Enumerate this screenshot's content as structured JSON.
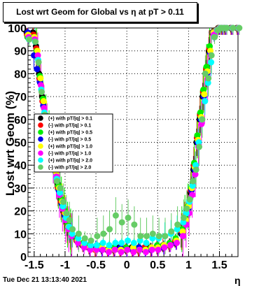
{
  "title": "Lost wrt Geom for Global vs   η at pT > 0.11",
  "timestamp": "Tue Dec 21 13:13:40 2021",
  "chart_data": {
    "type": "scatter",
    "title": "Lost wrt Geom for Global vs   η at pT > 0.11",
    "xlabel": "η",
    "ylabel": "Lost wrt Geom (%)",
    "xlim": [
      -1.6,
      1.8
    ],
    "ylim": [
      0,
      100
    ],
    "grid": true,
    "legend_position": "left-middle",
    "x_ticks": [
      -1.5,
      -1,
      -0.5,
      0,
      0.5,
      1,
      1.5
    ],
    "x_tick_labels": [
      "-1.5",
      "-1",
      "-0.5",
      "0",
      "0.5",
      "1",
      "1.5"
    ],
    "y_ticks": [
      0,
      10,
      20,
      30,
      40,
      50,
      60,
      70,
      80,
      90,
      100
    ],
    "y_tick_labels": [
      "0",
      "10",
      "20",
      "30",
      "40",
      "50",
      "60",
      "70",
      "80",
      "90",
      "100"
    ],
    "x": [
      -1.6,
      -1.5,
      -1.45,
      -1.4,
      -1.35,
      -1.3,
      -1.25,
      -1.2,
      -1.15,
      -1.1,
      -1.05,
      -1.0,
      -0.95,
      -0.9,
      -0.8,
      -0.7,
      -0.6,
      -0.5,
      -0.4,
      -0.3,
      -0.2,
      -0.1,
      0.0,
      0.1,
      0.2,
      0.3,
      0.4,
      0.5,
      0.6,
      0.7,
      0.8,
      0.9,
      0.95,
      1.0,
      1.05,
      1.1,
      1.15,
      1.2,
      1.25,
      1.3,
      1.35,
      1.4,
      1.45,
      1.5,
      1.55,
      1.6,
      1.7,
      1.8
    ],
    "series": [
      {
        "name": "(+) with pT/|q| > 0.1",
        "color": "#000000",
        "values": [
          98,
          98,
          92,
          80,
          70,
          62,
          55,
          48,
          40,
          32,
          25,
          20,
          15,
          12,
          8,
          5,
          4,
          4,
          4,
          3,
          3,
          4,
          3,
          4,
          3,
          3,
          4,
          4,
          4,
          5,
          6,
          10,
          15,
          20,
          28,
          38,
          50,
          60,
          70,
          80,
          90,
          98,
          99,
          100,
          100,
          100,
          100,
          100
        ]
      },
      {
        "name": "(-) with pT/|q| > 0.1",
        "color": "#ff0000",
        "values": [
          97,
          97,
          91,
          78,
          68,
          60,
          53,
          46,
          38,
          30,
          24,
          19,
          14,
          11,
          7,
          5,
          4,
          3,
          4,
          3,
          3,
          3,
          4,
          3,
          3,
          4,
          3,
          4,
          5,
          5,
          7,
          11,
          16,
          21,
          29,
          40,
          52,
          62,
          72,
          82,
          91,
          98,
          99,
          100,
          100,
          100,
          100,
          100
        ]
      },
      {
        "name": "(+) with pT/|q| > 0.5",
        "color": "#00ee00",
        "values": [
          96,
          96,
          90,
          79,
          69,
          61,
          54,
          47,
          39,
          31,
          25,
          20,
          14,
          11,
          8,
          6,
          5,
          4,
          5,
          3,
          4,
          3,
          4,
          3,
          4,
          3,
          4,
          5,
          5,
          6,
          8,
          12,
          17,
          22,
          30,
          41,
          53,
          63,
          73,
          83,
          92,
          98,
          99,
          100,
          100,
          100,
          100,
          100
        ]
      },
      {
        "name": "(-) with pT/|q| > 0.5",
        "color": "#0000ee",
        "values": [
          98,
          88,
          82,
          76,
          66,
          58,
          51,
          44,
          37,
          29,
          23,
          18,
          13,
          10,
          7,
          5,
          4,
          4,
          3,
          3,
          3,
          4,
          3,
          3,
          4,
          3,
          3,
          4,
          4,
          5,
          6,
          10,
          15,
          21,
          29,
          38,
          50,
          60,
          70,
          80,
          89,
          98,
          99,
          100,
          100,
          100,
          100,
          100
        ]
      },
      {
        "name": "(+) with pT/|q| > 1.0",
        "color": "#ffff00",
        "values": [
          97,
          96,
          90,
          78,
          68,
          60,
          53,
          45,
          37,
          30,
          24,
          19,
          13,
          10,
          7,
          5,
          4,
          3,
          4,
          3,
          3,
          3,
          3,
          4,
          3,
          3,
          4,
          4,
          5,
          5,
          7,
          11,
          16,
          22,
          30,
          39,
          51,
          61,
          71,
          81,
          90,
          98,
          99,
          100,
          100,
          100,
          100,
          100
        ]
      },
      {
        "name": "(-) with pT/|q| > 1.0",
        "color": "#ff00ff",
        "values": [
          96,
          95,
          88,
          75,
          65,
          57,
          50,
          42,
          35,
          27,
          21,
          16,
          12,
          9,
          6,
          4,
          3,
          3,
          3,
          2,
          3,
          2,
          3,
          2,
          3,
          2,
          3,
          3,
          4,
          5,
          6,
          9,
          14,
          19,
          27,
          36,
          48,
          58,
          68,
          78,
          88,
          97,
          99,
          100,
          100,
          100,
          100,
          100
        ]
      },
      {
        "name": "(+) with pT/|q| > 2.0",
        "color": "#00ffff",
        "values": [
          95,
          94,
          86,
          73,
          63,
          55,
          48,
          41,
          34,
          28,
          22,
          17,
          13,
          10,
          8,
          6,
          5,
          5,
          6,
          5,
          6,
          6,
          7,
          6,
          7,
          6,
          8,
          8,
          9,
          10,
          12,
          15,
          19,
          24,
          31,
          40,
          50,
          60,
          68,
          76,
          85,
          96,
          99,
          100,
          100,
          100,
          100,
          100
        ]
      },
      {
        "name": "(-) with pT/|q| > 2.0",
        "color": "#66cc66",
        "values": [
          95,
          94,
          85,
          72,
          62,
          54,
          47,
          40,
          33,
          30,
          24,
          19,
          16,
          12,
          10,
          8,
          7,
          9,
          10,
          12,
          18,
          15,
          17,
          14,
          9,
          9,
          10,
          9,
          9,
          11,
          14,
          17,
          21,
          25,
          33,
          38,
          48,
          60,
          80,
          78,
          88,
          96,
          99,
          100,
          100,
          100,
          100,
          100
        ]
      }
    ]
  }
}
